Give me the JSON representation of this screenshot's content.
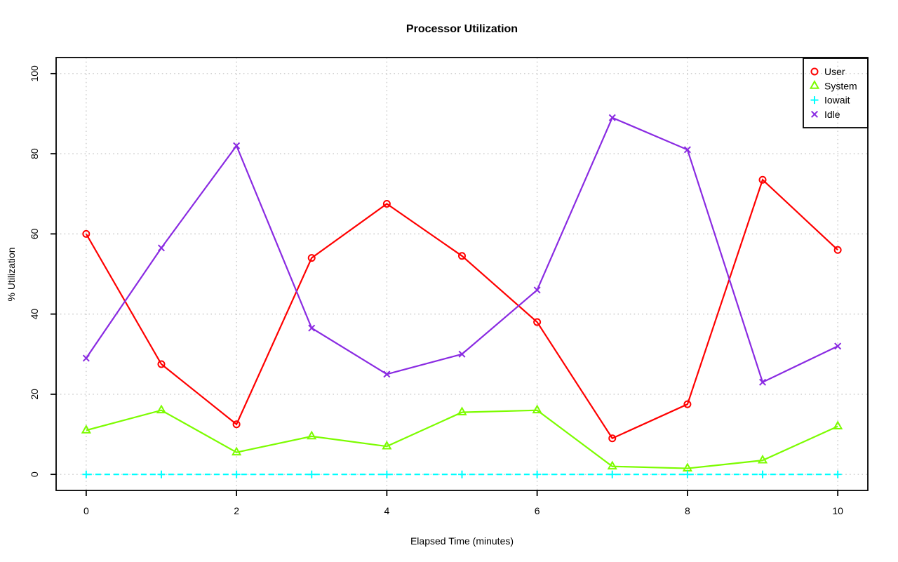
{
  "chart_data": {
    "type": "line",
    "title": "Processor Utilization",
    "xlabel": "Elapsed Time (minutes)",
    "ylabel": "% Utilization",
    "xlim": [
      0,
      10
    ],
    "ylim": [
      0,
      100
    ],
    "xticks": [
      0,
      2,
      4,
      6,
      8,
      10
    ],
    "yticks": [
      0,
      20,
      40,
      60,
      80,
      100
    ],
    "grid": "dotted",
    "grid_color": "#C9C9C9",
    "axis_color": "#000000",
    "legend_position": "top-right",
    "x": [
      0,
      1,
      2,
      3,
      4,
      5,
      6,
      7,
      8,
      9,
      10
    ],
    "series": [
      {
        "name": "User",
        "color": "#FF0000",
        "marker": "circle",
        "line": "solid",
        "values": [
          60,
          27.5,
          12.5,
          54,
          67.5,
          54.5,
          38,
          9,
          17.5,
          73.5,
          56
        ]
      },
      {
        "name": "System",
        "color": "#7CFC00",
        "marker": "triangle",
        "line": "solid",
        "values": [
          11,
          16,
          5.5,
          9.5,
          7,
          15.5,
          16,
          2,
          1.5,
          3.5,
          12
        ]
      },
      {
        "name": "Iowait",
        "color": "#00FFFF",
        "marker": "plus",
        "line": "dashed",
        "values": [
          0,
          0,
          0,
          0,
          0,
          0,
          0,
          0,
          0,
          0,
          0
        ]
      },
      {
        "name": "Idle",
        "color": "#8A2BE2",
        "marker": "x",
        "line": "solid",
        "values": [
          29,
          56.5,
          82,
          36.5,
          25,
          30,
          46,
          89,
          81,
          23,
          32
        ]
      }
    ]
  }
}
